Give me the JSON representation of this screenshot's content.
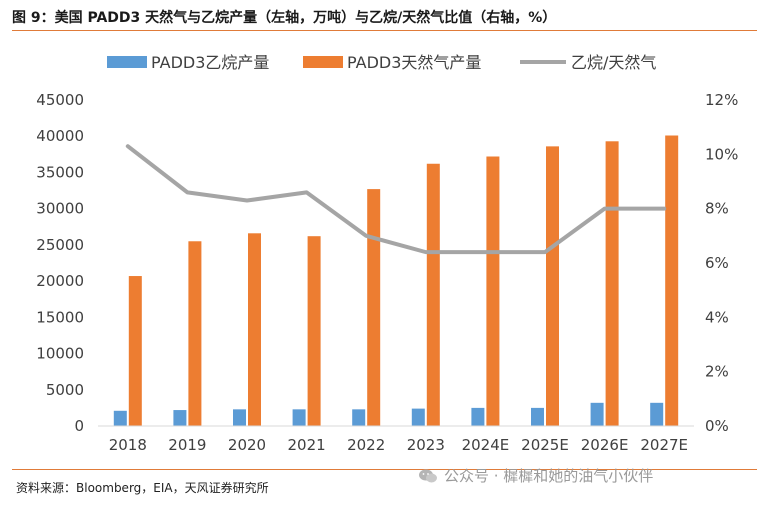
{
  "header": {
    "title": "图 9：美国 PADD3 天然气与乙烷产量（左轴，万吨）与乙烷/天然气比值（右轴，%）"
  },
  "footer": {
    "source": "资料来源：Bloomberg，EIA，天风证券研究所",
    "watermark": "公众号 · 樨樨和她的油气小伙伴",
    "watermark_icon": "wechat-icon"
  },
  "colors": {
    "ethane": "#5b9bd5",
    "natgas": "#ed7d31",
    "ratio": "#a5a5a5",
    "rule": "#e07b39"
  },
  "chart_data": {
    "type": "bar",
    "title": "",
    "categories": [
      "2018",
      "2019",
      "2020",
      "2021",
      "2022",
      "2023",
      "2024E",
      "2025E",
      "2026E",
      "2027E"
    ],
    "series": [
      {
        "name": "PADD3乙烷产量",
        "type": "bar",
        "axis": "left",
        "values": [
          2100,
          2200,
          2300,
          2300,
          2300,
          2400,
          2500,
          2500,
          3200,
          3200
        ]
      },
      {
        "name": "PADD3天然气产量",
        "type": "bar",
        "axis": "left",
        "values": [
          20700,
          25500,
          26600,
          26200,
          32700,
          36200,
          37200,
          38600,
          39300,
          40100
        ]
      },
      {
        "name": "乙烷/天然气",
        "type": "line",
        "axis": "right",
        "values": [
          10.3,
          8.6,
          8.3,
          8.6,
          7.0,
          6.4,
          6.4,
          6.4,
          8.0,
          8.0
        ]
      }
    ],
    "y_left": {
      "min": 0,
      "max": 45000,
      "ticks": [
        "0",
        "5000",
        "10000",
        "15000",
        "20000",
        "25000",
        "30000",
        "35000",
        "40000",
        "45000"
      ]
    },
    "y_right": {
      "min": 0,
      "max": 12,
      "ticks": [
        "0%",
        "2%",
        "4%",
        "6%",
        "8%",
        "10%",
        "12%"
      ]
    },
    "legend_position": "top",
    "grid": false
  }
}
